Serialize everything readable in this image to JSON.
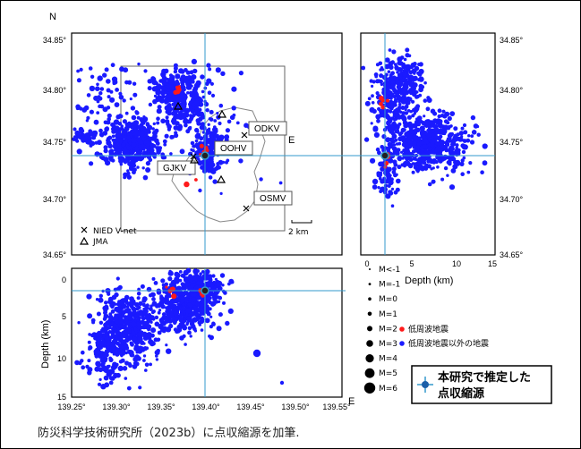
{
  "compass": {
    "north": "N"
  },
  "axes": {
    "lat_ticks": [
      "34.85°",
      "34.80°",
      "34.75°",
      "34.70°",
      "34.65°"
    ],
    "lon_ticks": [
      "139.25°",
      "139.30°",
      "139.35°",
      "139.40°",
      "139.45°",
      "139.50°",
      "139.55°"
    ],
    "depth_ticks_x": [
      "0",
      "5",
      "10",
      "15"
    ],
    "depth_ticks_y": [
      "0",
      "5",
      "10",
      "15"
    ],
    "depth_label_x": "Depth (km)",
    "depth_label_y": "Depth (km)",
    "east_label_map": "E",
    "east_label_section": "E"
  },
  "stations": {
    "odkv": "ODKV",
    "oohv": "OOHV",
    "gjkv": "GJKV",
    "osmv": "OSMV"
  },
  "map_legend": {
    "nied": "NIED V-net",
    "jma": "JMA",
    "scale": "2 km"
  },
  "magnitude_legend": [
    "M<-1",
    "M=-1",
    "M=0",
    "M=1",
    "M=2",
    "M=3",
    "M=4",
    "M=5",
    "M=6"
  ],
  "event_legend": {
    "low_freq": "低周波地震",
    "other": "低周波地震以外の地震",
    "low_freq_color": "#ff1a1a",
    "other_color": "#1a1aff"
  },
  "source_legend": {
    "line1": "本研究で推定した",
    "line2": "点収縮源"
  },
  "caption": "防災科学技術研究所（2023b）に点収縮源を加筆."
}
